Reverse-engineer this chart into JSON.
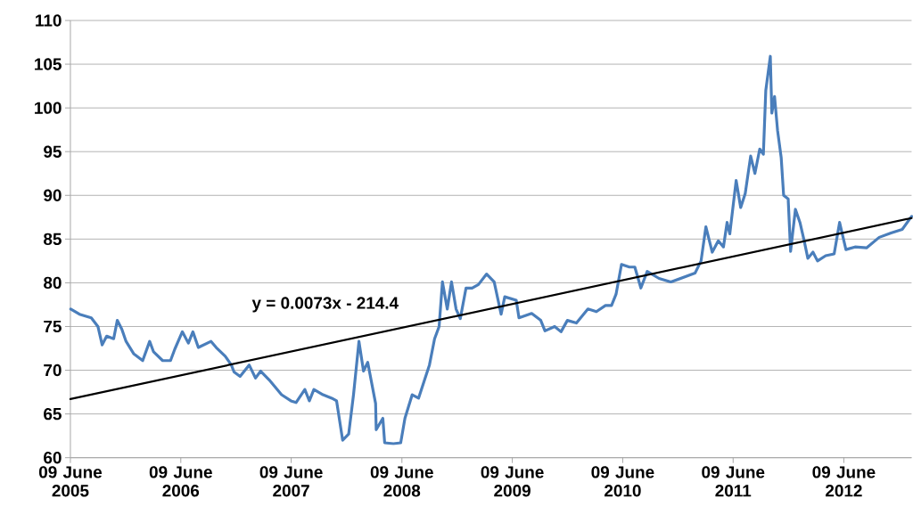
{
  "chart_data": {
    "type": "line",
    "xlim": [
      "2005-06-09",
      "2013-01-19"
    ],
    "xticks": [
      {
        "value": "2005-06-09",
        "label": "09 June 2005"
      },
      {
        "value": "2006-06-09",
        "label": "09 June 2006"
      },
      {
        "value": "2007-06-09",
        "label": "09 June 2007"
      },
      {
        "value": "2008-06-09",
        "label": "09 June 2008"
      },
      {
        "value": "2009-06-09",
        "label": "09 June 2009"
      },
      {
        "value": "2010-06-09",
        "label": "09 June 2010"
      },
      {
        "value": "2011-06-09",
        "label": "09 June 2011"
      },
      {
        "value": "2012-06-09",
        "label": "09 June 2012"
      }
    ],
    "ylim": [
      60,
      110
    ],
    "yticks": [
      60,
      65,
      70,
      75,
      80,
      85,
      90,
      95,
      100,
      105,
      110
    ],
    "grid": "y",
    "marker": "none",
    "line_style": "solid",
    "annotations": [
      "y = 0.0073x - 214.4"
    ],
    "series": [
      {
        "color": "#4a7ebb",
        "x": [
          "2005-06-10",
          "2005-07-09",
          "2005-08-17",
          "2005-09-08",
          "2005-09-22",
          "2005-10-07",
          "2005-10-30",
          "2005-11-11",
          "2005-11-26",
          "2005-12-10",
          "2006-01-04",
          "2006-02-03",
          "2006-02-26",
          "2006-03-11",
          "2006-04-10",
          "2006-05-06",
          "2006-05-20",
          "2006-06-14",
          "2006-07-04",
          "2006-07-19",
          "2006-08-06",
          "2006-09-17",
          "2006-10-04",
          "2006-11-03",
          "2006-11-23",
          "2006-12-02",
          "2006-12-22",
          "2007-01-21",
          "2007-02-11",
          "2007-02-28",
          "2007-03-28",
          "2007-05-08",
          "2007-06-08",
          "2007-06-25",
          "2007-07-24",
          "2007-08-08",
          "2007-08-23",
          "2007-09-22",
          "2007-10-21",
          "2007-11-06",
          "2007-11-26",
          "2007-12-16",
          "2008-01-01",
          "2008-01-19",
          "2008-02-03",
          "2008-02-17",
          "2008-03-14",
          "2008-03-16",
          "2008-04-07",
          "2008-04-13",
          "2008-05-12",
          "2008-06-05",
          "2008-06-19",
          "2008-07-13",
          "2008-08-03",
          "2008-08-23",
          "2008-09-08",
          "2008-09-25",
          "2008-10-10",
          "2008-10-21",
          "2008-11-06",
          "2008-11-20",
          "2008-12-05",
          "2008-12-19",
          "2009-01-07",
          "2009-01-27",
          "2009-02-17",
          "2009-03-16",
          "2009-04-10",
          "2009-05-03",
          "2009-05-15",
          "2009-06-22",
          "2009-07-01",
          "2009-08-12",
          "2009-09-11",
          "2009-09-25",
          "2009-10-27",
          "2009-11-17",
          "2009-12-08",
          "2010-01-07",
          "2010-02-14",
          "2010-03-14",
          "2010-04-13",
          "2010-05-03",
          "2010-05-18",
          "2010-06-05",
          "2010-07-01",
          "2010-07-19",
          "2010-08-08",
          "2010-08-29",
          "2010-10-07",
          "2010-11-15",
          "2010-12-25",
          "2011-02-03",
          "2011-02-23",
          "2011-03-11",
          "2011-04-01",
          "2011-04-21",
          "2011-05-08",
          "2011-05-20",
          "2011-05-29",
          "2011-06-19",
          "2011-07-04",
          "2011-07-19",
          "2011-08-06",
          "2011-08-20",
          "2011-09-05",
          "2011-09-17",
          "2011-09-25",
          "2011-10-10",
          "2011-10-15",
          "2011-10-24",
          "2011-11-03",
          "2011-11-15",
          "2011-11-23",
          "2011-12-08",
          "2011-12-16",
          "2012-01-01",
          "2012-01-16",
          "2012-01-30",
          "2012-02-11",
          "2012-02-28",
          "2012-03-14",
          "2012-04-10",
          "2012-05-08",
          "2012-05-26",
          "2012-06-16",
          "2012-07-16",
          "2012-08-23",
          "2012-10-04",
          "2012-11-12",
          "2012-12-19",
          "2013-01-19"
        ],
        "values": [
          77.0,
          76.4,
          76.0,
          75.0,
          72.9,
          73.9,
          73.6,
          75.7,
          74.7,
          73.3,
          71.9,
          71.1,
          73.3,
          72.1,
          71.1,
          71.1,
          72.4,
          74.4,
          73.1,
          74.4,
          72.6,
          73.3,
          72.6,
          71.6,
          70.6,
          69.8,
          69.3,
          70.6,
          69.1,
          69.9,
          68.9,
          67.2,
          66.5,
          66.3,
          67.8,
          66.5,
          67.8,
          67.2,
          66.8,
          66.5,
          62.0,
          62.7,
          67.2,
          73.3,
          69.9,
          70.9,
          66.2,
          63.2,
          64.5,
          61.7,
          61.6,
          61.7,
          64.5,
          67.2,
          66.8,
          68.9,
          70.6,
          73.6,
          75.0,
          80.1,
          77.0,
          80.1,
          77.0,
          75.9,
          79.4,
          79.4,
          79.8,
          81.0,
          80.1,
          76.4,
          78.4,
          78.0,
          76.0,
          76.5,
          75.7,
          74.5,
          75.0,
          74.4,
          75.7,
          75.4,
          77.0,
          76.7,
          77.4,
          77.4,
          78.7,
          82.1,
          81.8,
          81.8,
          79.4,
          81.3,
          80.5,
          80.1,
          80.6,
          81.1,
          82.5,
          86.4,
          83.5,
          84.8,
          84.1,
          86.9,
          85.6,
          91.7,
          88.6,
          90.2,
          94.5,
          92.5,
          95.3,
          94.7,
          102.0,
          105.9,
          99.4,
          101.3,
          97.4,
          94.3,
          90.0,
          89.6,
          83.6,
          88.4,
          86.9,
          84.8,
          82.8,
          83.5,
          82.5,
          83.1,
          83.3,
          86.9,
          83.8,
          84.1,
          84.0,
          85.2,
          85.7,
          86.1,
          87.6
        ]
      },
      {
        "type": "line",
        "color": "#000000",
        "x": [
          "2005-06-09",
          "2013-01-19"
        ],
        "values": [
          66.7,
          87.4
        ]
      }
    ]
  }
}
